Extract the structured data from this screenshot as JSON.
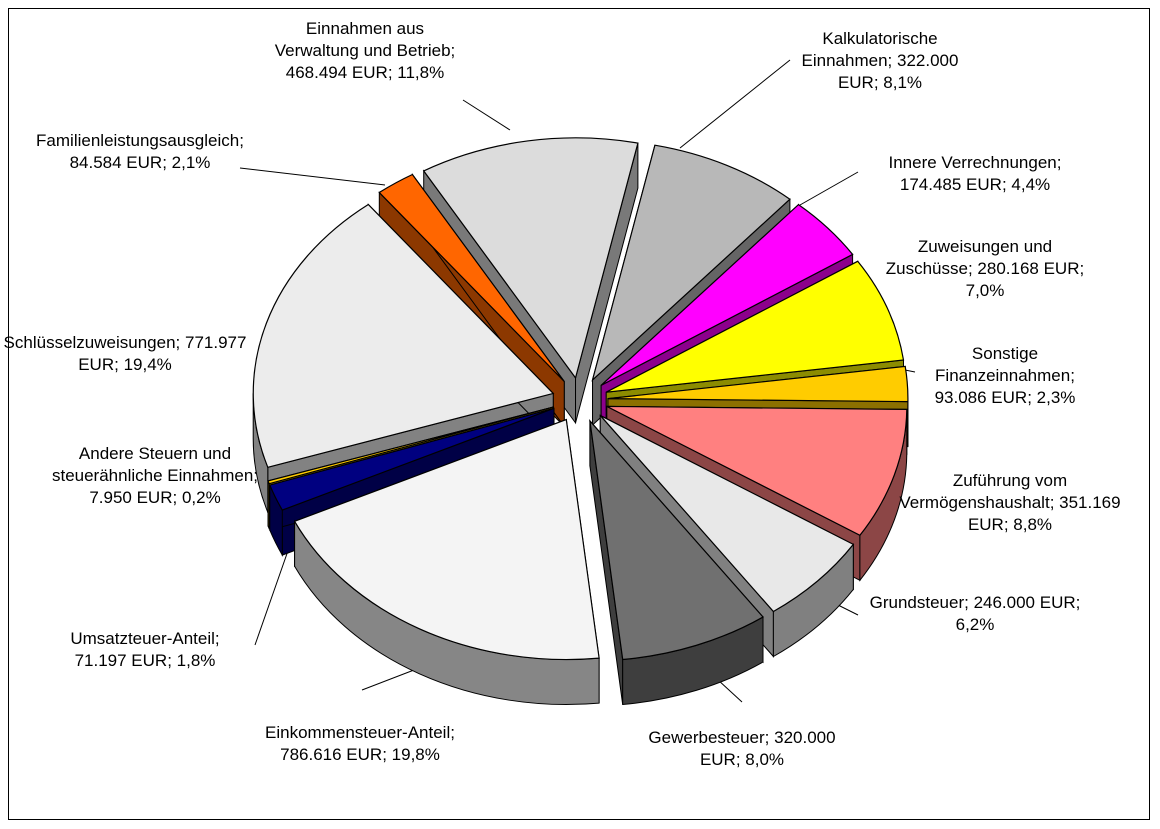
{
  "chart_data": {
    "type": "pie",
    "categories": [
      "Kalkulatorische Einnahmen",
      "Innere Verrechnungen",
      "Zuweisungen und Zuschüsse",
      "Sonstige Finanzeinnahmen",
      "Zuführung vom Vermögenshaushalt",
      "Grundsteuer",
      "Gewerbesteuer",
      "Einkommensteuer-Anteil",
      "Umsatzteuer-Anteil",
      "Andere Steuern und steuerähnliche Einnahmen",
      "Schlüsselzuweisungen",
      "Familienleistungsausgleich",
      "Einnahmen aus Verwaltung und Betrieb"
    ],
    "values": [
      322000,
      174485,
      280168,
      93086,
      351169,
      246000,
      320000,
      786616,
      71197,
      7950,
      771977,
      84584,
      468494
    ],
    "value_labels": [
      "322.000 EUR",
      "174.485 EUR",
      "280.168 EUR",
      "93.086 EUR",
      "351.169 EUR",
      "246.000 EUR",
      "320.000 EUR",
      "786.616 EUR",
      "71.197 EUR",
      "7.950 EUR",
      "771.977 EUR",
      "84.584 EUR",
      "468.494 EUR"
    ],
    "percentages": [
      8.1,
      4.4,
      7.0,
      2.3,
      8.8,
      6.2,
      8.0,
      19.8,
      1.8,
      0.2,
      19.4,
      2.1,
      11.8
    ],
    "percent_labels": [
      "8,1%",
      "4,4%",
      "7,0%",
      "2,3%",
      "8,8%",
      "6,2%",
      "8,0%",
      "19,8%",
      "1,8%",
      "0,2%",
      "19,4%",
      "2,1%",
      "11,8%"
    ],
    "label_separator": "; ",
    "colors": [
      "#b8b8b8",
      "#ff00ff",
      "#ffff00",
      "#ffcc00",
      "#ff8080",
      "#e8e8e8",
      "#707070",
      "#f4f4f4",
      "#000080",
      "#ffcc00",
      "#ececec",
      "#ff6600",
      "#dcdcdc"
    ]
  }
}
